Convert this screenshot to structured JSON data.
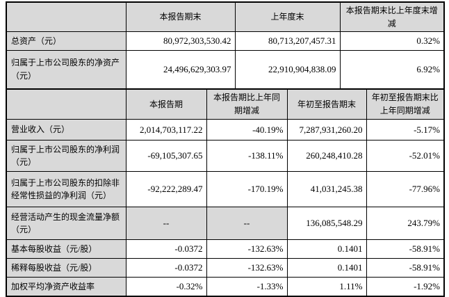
{
  "colors": {
    "header_bg": "#d9d9d9",
    "label_bg": "#d9d9d9",
    "cell_bg": "#ffffff",
    "border": "#000000"
  },
  "period_end_table": {
    "headers": [
      "",
      "本报告期末",
      "上年度末",
      "本报告期末比上年度末增减"
    ],
    "rows": [
      {
        "label": "总资产（元）",
        "values": [
          "80,972,303,530.42",
          "80,713,207,457.31",
          "0.32%"
        ]
      },
      {
        "label": "归属于上市公司股东的净资产（元）",
        "values": [
          "24,496,629,303.97",
          "22,910,904,838.09",
          "6.92%"
        ]
      }
    ]
  },
  "period_table": {
    "headers": [
      "",
      "本报告期",
      "本报告期比上年同期增减",
      "年初至报告期末",
      "年初至报告期末比上年同期增减"
    ],
    "rows": [
      {
        "label": "营业收入（元）",
        "values": [
          "2,014,703,117.22",
          "-40.19%",
          "7,287,931,260.20",
          "-5.17%"
        ]
      },
      {
        "label": "归属于上市公司股东的净利润（元）",
        "values": [
          "-69,105,307.65",
          "-138.11%",
          "260,248,410.28",
          "-52.01%"
        ]
      },
      {
        "label": "归属于上市公司股东的扣除非经常性损益的净利润（元）",
        "values": [
          "-92,222,289.47",
          "-170.19%",
          "41,031,245.38",
          "-77.96%"
        ]
      },
      {
        "label": "经营活动产生的现金流量净额（元）",
        "values": [
          "--",
          "--",
          "136,085,548.29",
          "243.79%"
        ]
      },
      {
        "label": "基本每股收益（元/股）",
        "values": [
          "-0.0372",
          "-132.63%",
          "0.1401",
          "-58.91%"
        ]
      },
      {
        "label": "稀释每股收益（元/股）",
        "values": [
          "-0.0372",
          "-132.63%",
          "0.1401",
          "-58.91%"
        ]
      },
      {
        "label": "加权平均净资产收益率",
        "values": [
          "-0.32%",
          "-1.33%",
          "1.11%",
          "-1.92%"
        ]
      }
    ]
  }
}
